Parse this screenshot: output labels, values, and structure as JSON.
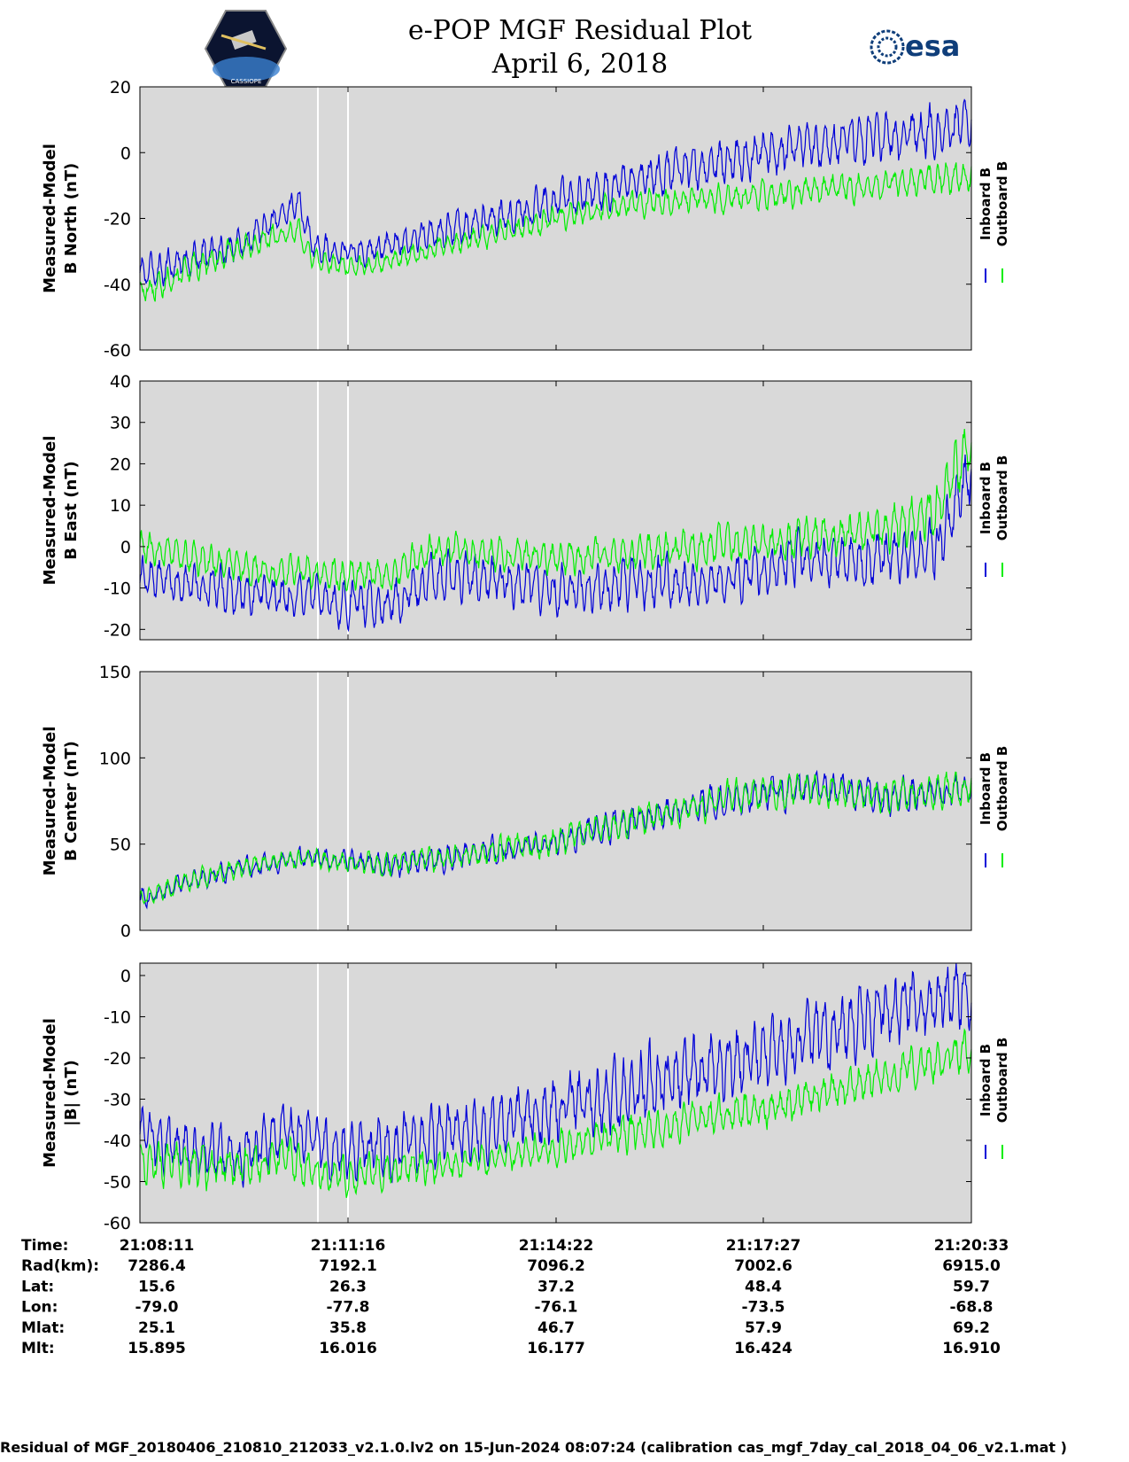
{
  "title_line1": "e-POP MGF Residual Plot",
  "title_line2": "April 6, 2018",
  "logos": {
    "left": "cassiope-mission-patch",
    "left_text": "CASSIOPE",
    "right_text": "esa"
  },
  "colors": {
    "inboard": "#0000d8",
    "outboard": "#00ee00",
    "panel_bg": "#d9d9d9",
    "gap": "#ffffff"
  },
  "chart_data": [
    {
      "type": "line",
      "ylabel_line1": "Measured-Model",
      "ylabel_line2": "B North (nT)",
      "ylim": [
        -60,
        20
      ],
      "yticks": [
        "20",
        "0",
        "-20",
        "-40",
        "-60"
      ],
      "series": [
        {
          "name": "Inboard B",
          "trend": [
            [
              0,
              -37
            ],
            [
              0.13,
              -27
            ],
            [
              0.19,
              -15
            ],
            [
              0.21,
              -29
            ],
            [
              0.27,
              -30
            ],
            [
              0.5,
              -15
            ],
            [
              0.6,
              -8
            ],
            [
              0.75,
              0
            ],
            [
              1,
              8
            ]
          ],
          "amplitude": [
            [
              0,
              5
            ],
            [
              0.15,
              5
            ],
            [
              0.25,
              4
            ],
            [
              0.5,
              6
            ],
            [
              0.75,
              7
            ],
            [
              1,
              8
            ]
          ]
        },
        {
          "name": "Outboard B",
          "trend": [
            [
              0,
              -42
            ],
            [
              0.13,
              -28
            ],
            [
              0.19,
              -23
            ],
            [
              0.21,
              -33
            ],
            [
              0.27,
              -35
            ],
            [
              0.5,
              -20
            ],
            [
              0.6,
              -15
            ],
            [
              0.75,
              -13
            ],
            [
              1,
              -7
            ]
          ],
          "amplitude": [
            [
              0,
              5
            ],
            [
              0.25,
              3
            ],
            [
              0.5,
              4
            ],
            [
              1,
              5
            ]
          ]
        }
      ]
    },
    {
      "type": "line",
      "ylabel_line1": "Measured-Model",
      "ylabel_line2": "B East (nT)",
      "ylim": [
        -22.5,
        40
      ],
      "yticks": [
        "40",
        "30",
        "20",
        "10",
        "0",
        "-10",
        "-20"
      ],
      "series": [
        {
          "name": "Inboard B",
          "trend": [
            [
              0,
              -7
            ],
            [
              0.15,
              -12
            ],
            [
              0.3,
              -14
            ],
            [
              0.35,
              -7
            ],
            [
              0.5,
              -10
            ],
            [
              0.7,
              -8
            ],
            [
              0.8,
              -3
            ],
            [
              0.9,
              -3
            ],
            [
              0.96,
              0
            ],
            [
              1,
              18
            ]
          ],
          "amplitude": [
            [
              0,
              5
            ],
            [
              0.5,
              6
            ],
            [
              0.8,
              6
            ],
            [
              1,
              8
            ]
          ]
        },
        {
          "name": "Outboard B",
          "trend": [
            [
              0,
              0
            ],
            [
              0.15,
              -6
            ],
            [
              0.3,
              -7
            ],
            [
              0.35,
              -1
            ],
            [
              0.5,
              -3
            ],
            [
              0.7,
              0
            ],
            [
              0.8,
              2
            ],
            [
              0.9,
              4
            ],
            [
              0.96,
              10
            ],
            [
              1,
              25
            ]
          ],
          "amplitude": [
            [
              0,
              4
            ],
            [
              0.5,
              4
            ],
            [
              0.8,
              5
            ],
            [
              1,
              7
            ]
          ]
        }
      ]
    },
    {
      "type": "line",
      "ylabel_line1": "Measured-Model",
      "ylabel_line2": "B Center (nT)",
      "ylim": [
        0,
        150
      ],
      "yticks": [
        "150",
        "100",
        "50",
        "0"
      ],
      "series": [
        {
          "name": "Inboard B",
          "trend": [
            [
              0,
              18
            ],
            [
              0.06,
              28
            ],
            [
              0.12,
              36
            ],
            [
              0.2,
              42
            ],
            [
              0.3,
              38
            ],
            [
              0.4,
              44
            ],
            [
              0.5,
              52
            ],
            [
              0.6,
              64
            ],
            [
              0.7,
              76
            ],
            [
              0.8,
              82
            ],
            [
              0.9,
              78
            ],
            [
              1,
              82
            ]
          ],
          "amplitude": [
            [
              0,
              6
            ],
            [
              0.2,
              6
            ],
            [
              0.5,
              9
            ],
            [
              1,
              10
            ]
          ]
        },
        {
          "name": "Outboard B",
          "trend": [
            [
              0,
              18
            ],
            [
              0.06,
              28
            ],
            [
              0.12,
              36
            ],
            [
              0.2,
              42
            ],
            [
              0.3,
              38
            ],
            [
              0.4,
              44
            ],
            [
              0.5,
              52
            ],
            [
              0.6,
              64
            ],
            [
              0.7,
              76
            ],
            [
              0.8,
              82
            ],
            [
              0.9,
              78
            ],
            [
              1,
              82
            ]
          ],
          "amplitude": [
            [
              0,
              6
            ],
            [
              0.2,
              6
            ],
            [
              0.5,
              9
            ],
            [
              1,
              10
            ]
          ]
        }
      ]
    },
    {
      "type": "line",
      "ylabel_line1": "Measured-Model",
      "ylabel_line2": "|B| (nT)",
      "ylim": [
        -60,
        3
      ],
      "yticks": [
        "0",
        "-10",
        "-20",
        "-30",
        "-40",
        "-50",
        "-60"
      ],
      "series": [
        {
          "name": "Inboard B",
          "trend": [
            [
              0,
              -40
            ],
            [
              0.13,
              -44
            ],
            [
              0.17,
              -37
            ],
            [
              0.2,
              -38
            ],
            [
              0.22,
              -43
            ],
            [
              0.3,
              -41
            ],
            [
              0.5,
              -33
            ],
            [
              0.7,
              -22
            ],
            [
              0.9,
              -9
            ],
            [
              1,
              -4
            ]
          ],
          "amplitude": [
            [
              0,
              7
            ],
            [
              0.3,
              7
            ],
            [
              0.6,
              9
            ],
            [
              1,
              9
            ]
          ]
        },
        {
          "name": "Outboard B",
          "trend": [
            [
              0,
              -45
            ],
            [
              0.13,
              -47
            ],
            [
              0.17,
              -44
            ],
            [
              0.22,
              -49
            ],
            [
              0.4,
              -45
            ],
            [
              0.6,
              -38
            ],
            [
              0.8,
              -30
            ],
            [
              1,
              -18
            ]
          ],
          "amplitude": [
            [
              0,
              6
            ],
            [
              0.4,
              4
            ],
            [
              0.8,
              5
            ],
            [
              1,
              5
            ]
          ]
        }
      ]
    }
  ],
  "legend": {
    "inboard": "Inboard B",
    "outboard": "Outboard B"
  },
  "footer_rows": [
    {
      "label": "Time:",
      "values": [
        "21:08:11",
        "21:11:16",
        "21:14:22",
        "21:17:27",
        "21:20:33"
      ]
    },
    {
      "label": "Rad(km):",
      "values": [
        "7286.4",
        "7192.1",
        "7096.2",
        "7002.6",
        "6915.0"
      ]
    },
    {
      "label": "Lat:",
      "values": [
        "15.6",
        "26.3",
        "37.2",
        "48.4",
        "59.7"
      ]
    },
    {
      "label": "Lon:",
      "values": [
        "-79.0",
        "-77.8",
        "-76.1",
        "-73.5",
        "-68.8"
      ]
    },
    {
      "label": "Mlat:",
      "values": [
        "25.1",
        "35.8",
        "46.7",
        "57.9",
        "69.2"
      ]
    },
    {
      "label": "Mlt:",
      "values": [
        "15.895",
        "16.016",
        "16.177",
        "16.424",
        "16.910"
      ]
    }
  ],
  "footer_note": "Residual of MGF_20180406_210810_212033_v2.1.0.lv2 on 15-Jun-2024 08:07:24 (calibration cas_mgf_7day_cal_2018_04_06_v2.1.mat )"
}
